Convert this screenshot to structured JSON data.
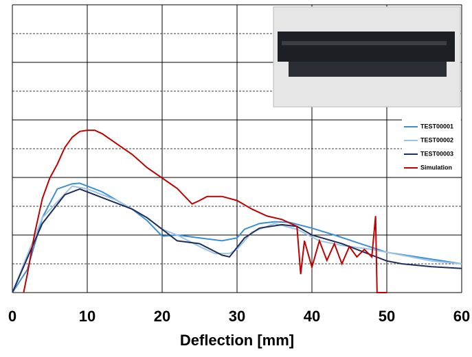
{
  "chart_data": {
    "type": "line",
    "x_label": "Deflection [mm]",
    "xlim": [
      0,
      60
    ],
    "xticks": [
      0,
      10,
      20,
      30,
      40,
      50,
      60
    ],
    "ylim": [
      0,
      5
    ],
    "yticks": [
      0,
      1,
      2,
      3,
      4,
      5
    ],
    "minor_yticks": [
      0.5,
      1.5,
      2.5,
      3.5,
      4.5
    ],
    "grid": true,
    "legend": "right",
    "series": [
      {
        "name": "TEST00001",
        "color": "#3b8fd6",
        "x": [
          0,
          2,
          4,
          6,
          8,
          9,
          10,
          12,
          14,
          16,
          18,
          20,
          22,
          25,
          28,
          30,
          31,
          33,
          35,
          37,
          40,
          43,
          46,
          50,
          55,
          60
        ],
        "values": [
          0,
          0.4,
          1.3,
          1.8,
          1.89,
          1.9,
          1.85,
          1.75,
          1.6,
          1.45,
          1.25,
          0.98,
          1.0,
          0.95,
          0.9,
          0.95,
          1.1,
          1.2,
          1.23,
          1.22,
          1.12,
          1.0,
          0.87,
          0.7,
          0.6,
          0.5
        ]
      },
      {
        "name": "TEST00002",
        "color": "#9dc3e6",
        "x": [
          0,
          4,
          8,
          10,
          14,
          18,
          20,
          22,
          25,
          27,
          29,
          30,
          32,
          35,
          38,
          41,
          44,
          48,
          52,
          56,
          60
        ],
        "values": [
          0,
          1.3,
          1.85,
          1.8,
          1.6,
          1.3,
          1.1,
          1.0,
          0.8,
          0.68,
          0.68,
          0.75,
          1.05,
          1.2,
          1.1,
          0.9,
          0.82,
          0.75,
          0.65,
          0.55,
          0.5
        ]
      },
      {
        "name": "TEST00003",
        "color": "#1f2d5a",
        "x": [
          0,
          4,
          7,
          9,
          12,
          16,
          18,
          20,
          22,
          25,
          28,
          29,
          31,
          33,
          36,
          38,
          40,
          44,
          48,
          50,
          52,
          56,
          60
        ],
        "values": [
          0,
          1.2,
          1.7,
          1.8,
          1.65,
          1.45,
          1.3,
          1.1,
          0.9,
          0.85,
          0.65,
          0.62,
          0.95,
          1.12,
          1.18,
          1.15,
          1.0,
          0.85,
          0.65,
          0.55,
          0.5,
          0.45,
          0.42
        ]
      },
      {
        "name": "Simulation",
        "color": "#c00000",
        "x": [
          1.5,
          2,
          3,
          4,
          5,
          6,
          7,
          8,
          9,
          10,
          11,
          12,
          14,
          16,
          18,
          20,
          22,
          24,
          25,
          26,
          28,
          30,
          32,
          34,
          36,
          38,
          38.5,
          39,
          40,
          41,
          42,
          43,
          44,
          45,
          46,
          47,
          48,
          48.5,
          48.7,
          50
        ],
        "values": [
          0,
          0.32,
          1.04,
          1.63,
          1.99,
          2.23,
          2.52,
          2.7,
          2.8,
          2.82,
          2.82,
          2.76,
          2.58,
          2.4,
          2.17,
          1.99,
          1.81,
          1.54,
          1.6,
          1.67,
          1.67,
          1.6,
          1.45,
          1.33,
          1.27,
          1.15,
          0.32,
          0.9,
          0.44,
          0.9,
          0.56,
          0.85,
          0.5,
          0.8,
          0.62,
          0.75,
          0.62,
          1.33,
          0,
          0
        ]
      }
    ]
  }
}
